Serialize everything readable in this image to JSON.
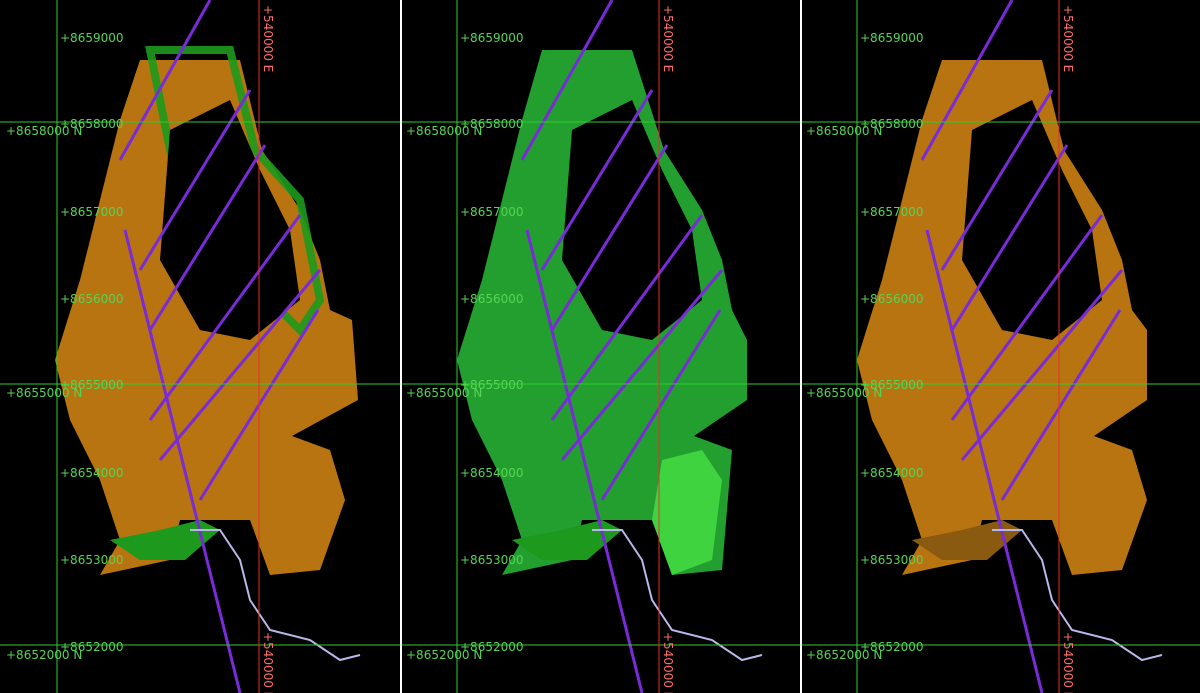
{
  "window": {
    "title": ""
  },
  "panels": [
    {
      "id": "panel-1",
      "scheme": "orange",
      "fill": "#c27a12",
      "edge": "#1d9a1d"
    },
    {
      "id": "panel-2",
      "scheme": "green",
      "fill": "#24a830",
      "edge": "#1d9a1d"
    },
    {
      "id": "panel-3",
      "scheme": "orange",
      "fill": "#c27a12",
      "edge": "#8a5a10"
    }
  ],
  "grid": {
    "northing_labels": [
      "+8659000",
      "+8658000",
      "+8657000",
      "+8656000",
      "+8655000",
      "+8654000",
      "+8653000",
      "+8652000"
    ],
    "northing_axis_labels": [
      "+8658000 N",
      "+8655000 N",
      "+8652000 N"
    ],
    "easting_label": "+540000 E"
  },
  "colors": {
    "grid_green": "#2ecc2e",
    "grid_red": "#e03030",
    "drillhole_purple": "#7a2bd8",
    "traverse": "#b8b8e8",
    "orange_surface": "#c27a12",
    "green_surface": "#24a830"
  },
  "icons": {
    "grid_tick": "cross-tick-icon"
  }
}
